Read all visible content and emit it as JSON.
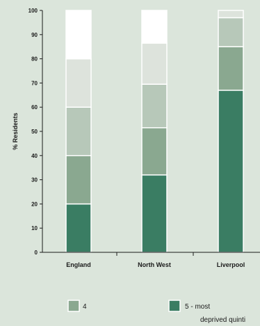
{
  "chart_data": {
    "type": "bar",
    "stacked": true,
    "categories": [
      "England",
      "North West",
      "Liverpool"
    ],
    "ylabel": "% Residents",
    "ylim": [
      0,
      100
    ],
    "yticks": [
      0,
      10,
      20,
      30,
      40,
      50,
      60,
      70,
      80,
      90,
      100
    ],
    "grid": false,
    "series": [
      {
        "values": [
          20,
          32,
          67
        ],
        "color": "#3a7d63"
      },
      {
        "name": "4",
        "values": [
          20,
          19.5,
          18
        ],
        "color": "#8aa890"
      },
      {
        "values": [
          20,
          18,
          12
        ],
        "color": "#b7c8b9"
      },
      {
        "values": [
          20,
          17,
          3
        ],
        "color": "#dde3dc"
      },
      {
        "values": [
          20,
          13.5,
          0
        ],
        "color": "#ffffff"
      }
    ],
    "legend": {
      "placement": "bottom",
      "items": [
        {
          "label": "4",
          "color": "#8aa890"
        },
        {
          "label": "5 - most",
          "label_line2": "deprived quinti",
          "color": "#3a7d63"
        }
      ]
    }
  }
}
